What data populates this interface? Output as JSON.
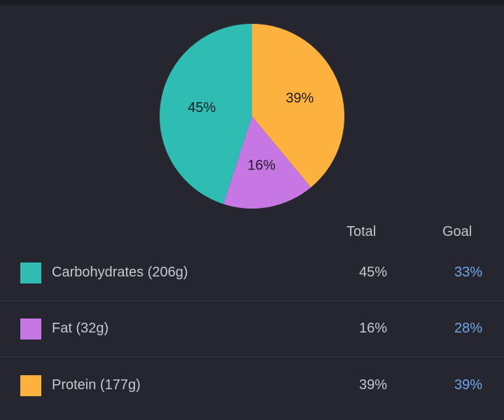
{
  "chart_data": {
    "type": "pie",
    "slices": [
      {
        "label": "45%",
        "value": 45,
        "color": "#2fbcb2"
      },
      {
        "label": "16%",
        "value": 16,
        "color": "#c777e3"
      },
      {
        "label": "39%",
        "value": 39,
        "color": "#fdb13e"
      }
    ]
  },
  "table": {
    "headers": {
      "total": "Total",
      "goal": "Goal"
    },
    "rows": [
      {
        "label": "Carbohydrates (206g)",
        "total": "45%",
        "goal": "33%",
        "color": "#2fbcb2"
      },
      {
        "label": "Fat (32g)",
        "total": "16%",
        "goal": "28%",
        "color": "#c777e3"
      },
      {
        "label": "Protein (177g)",
        "total": "39%",
        "goal": "39%",
        "color": "#fdb13e"
      }
    ]
  }
}
